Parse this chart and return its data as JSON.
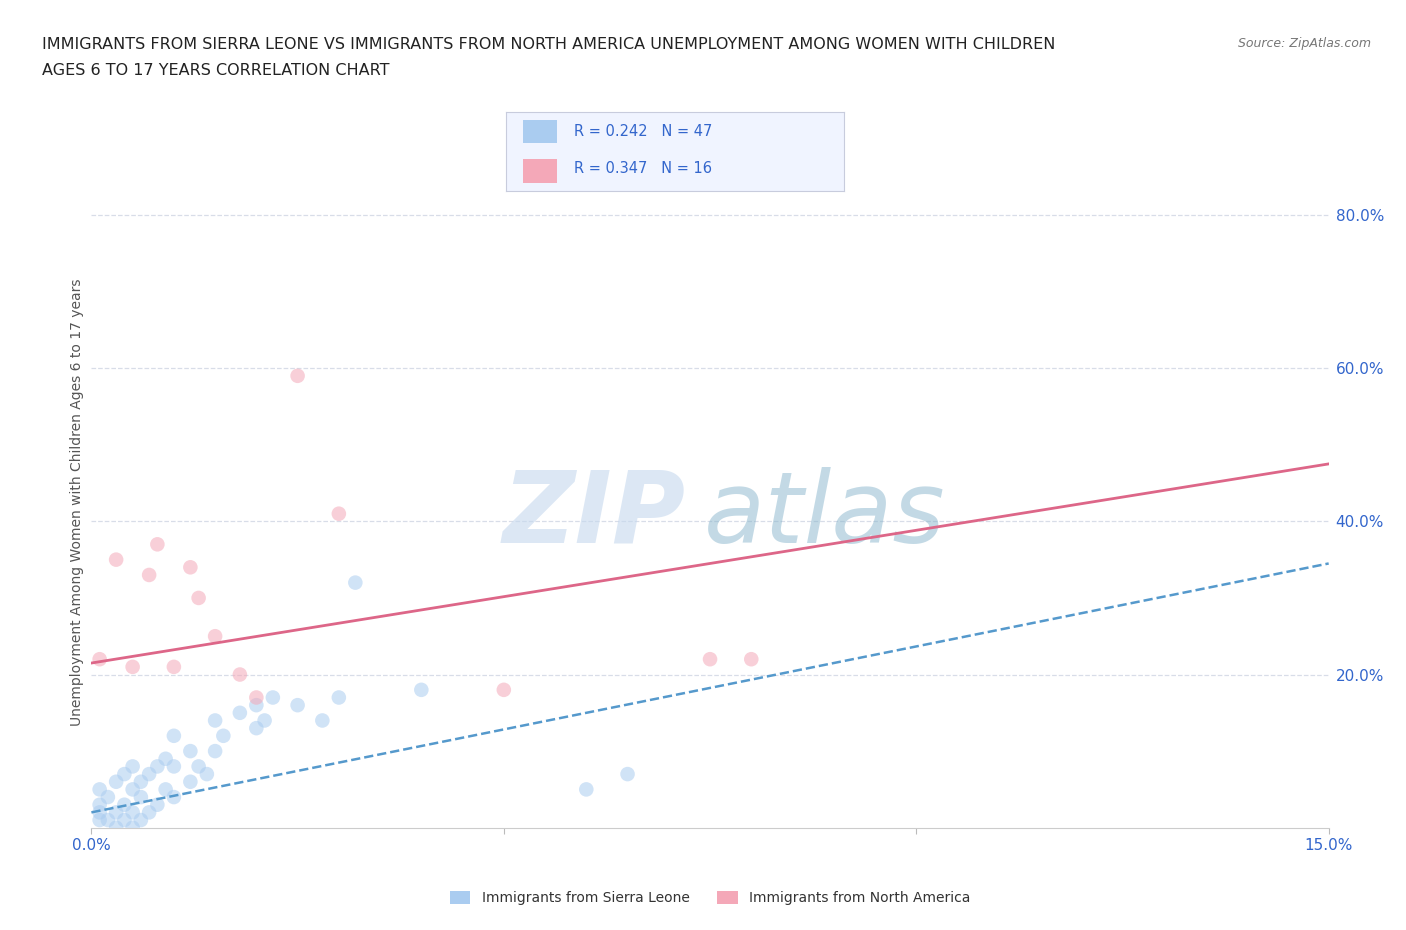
{
  "title_line1": "IMMIGRANTS FROM SIERRA LEONE VS IMMIGRANTS FROM NORTH AMERICA UNEMPLOYMENT AMONG WOMEN WITH CHILDREN",
  "title_line2": "AGES 6 TO 17 YEARS CORRELATION CHART",
  "source": "Source: ZipAtlas.com",
  "ylabel": "Unemployment Among Women with Children Ages 6 to 17 years",
  "xlim": [
    0.0,
    0.15
  ],
  "ylim": [
    0.0,
    0.85
  ],
  "sierra_leone_x": [
    0.001,
    0.001,
    0.001,
    0.001,
    0.002,
    0.002,
    0.003,
    0.003,
    0.003,
    0.004,
    0.004,
    0.004,
    0.005,
    0.005,
    0.005,
    0.005,
    0.006,
    0.006,
    0.006,
    0.007,
    0.007,
    0.008,
    0.008,
    0.009,
    0.009,
    0.01,
    0.01,
    0.01,
    0.012,
    0.012,
    0.013,
    0.014,
    0.015,
    0.015,
    0.016,
    0.018,
    0.02,
    0.02,
    0.021,
    0.022,
    0.025,
    0.028,
    0.03,
    0.032,
    0.04,
    0.06,
    0.065
  ],
  "sierra_leone_y": [
    0.01,
    0.02,
    0.03,
    0.05,
    0.01,
    0.04,
    0.0,
    0.02,
    0.06,
    0.01,
    0.03,
    0.07,
    0.0,
    0.02,
    0.05,
    0.08,
    0.01,
    0.04,
    0.06,
    0.02,
    0.07,
    0.03,
    0.08,
    0.05,
    0.09,
    0.04,
    0.08,
    0.12,
    0.06,
    0.1,
    0.08,
    0.07,
    0.1,
    0.14,
    0.12,
    0.15,
    0.13,
    0.16,
    0.14,
    0.17,
    0.16,
    0.14,
    0.17,
    0.32,
    0.18,
    0.05,
    0.07
  ],
  "north_america_x": [
    0.001,
    0.003,
    0.005,
    0.007,
    0.008,
    0.01,
    0.012,
    0.013,
    0.015,
    0.018,
    0.02,
    0.025,
    0.03,
    0.05,
    0.075,
    0.08
  ],
  "north_america_y": [
    0.22,
    0.35,
    0.21,
    0.33,
    0.37,
    0.21,
    0.34,
    0.3,
    0.25,
    0.2,
    0.17,
    0.59,
    0.41,
    0.18,
    0.22,
    0.22
  ],
  "sl_trend_x0": 0.0,
  "sl_trend_y0": 0.02,
  "sl_trend_x1": 0.15,
  "sl_trend_y1": 0.345,
  "na_trend_x0": 0.0,
  "na_trend_y0": 0.215,
  "na_trend_x1": 0.15,
  "na_trend_y1": 0.475,
  "sierra_leone_color": "#aaccf0",
  "north_america_color": "#f4a8b8",
  "sierra_leone_trend_color": "#5599cc",
  "north_america_trend_color": "#dd6688",
  "bg_color": "#ffffff",
  "grid_color": "#d8dde8",
  "marker_size": 110,
  "marker_alpha": 0.55
}
